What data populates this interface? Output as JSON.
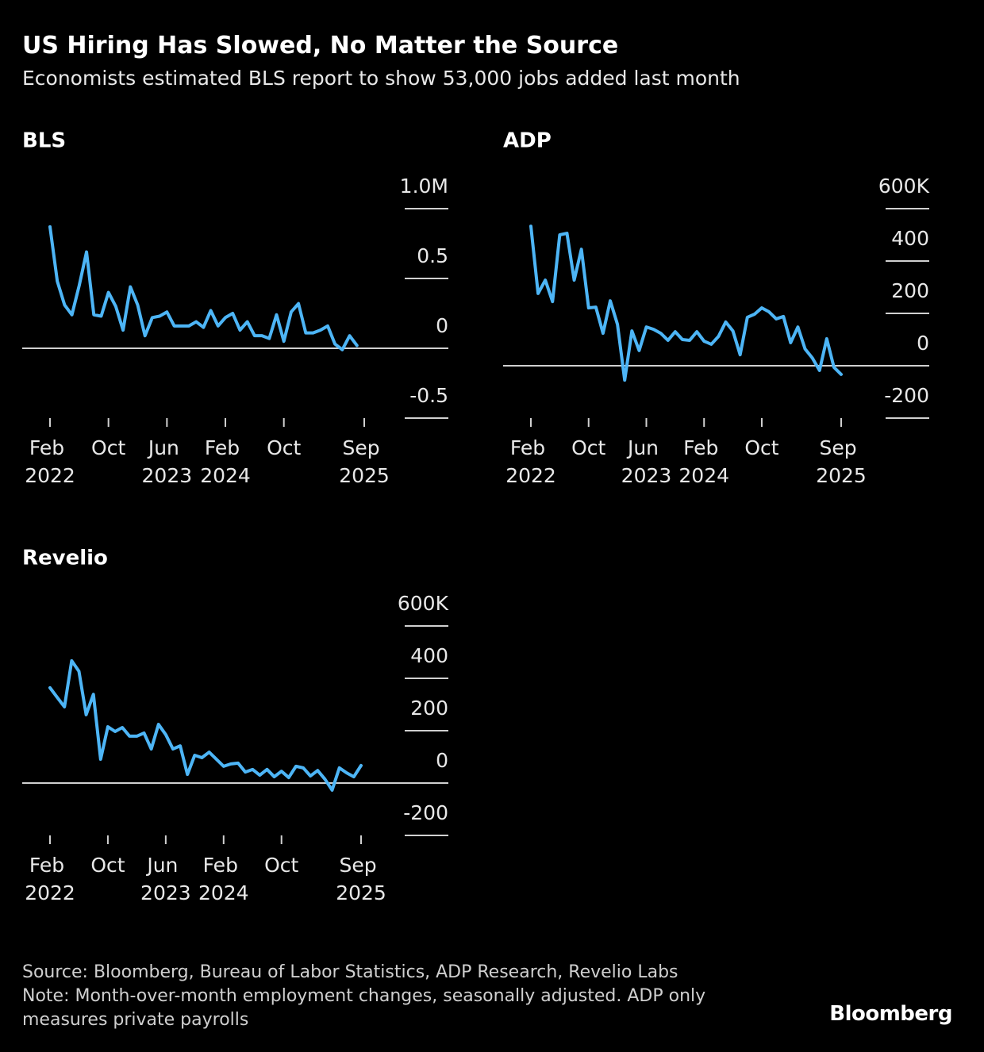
{
  "title": "US Hiring Has Slowed, No Matter the Source",
  "subtitle": "Economists estimated BLS report to show 53,000 jobs added last month",
  "chart_data": [
    {
      "type": "line",
      "title": "BLS",
      "color": "#4db5f6",
      "x": [
        "2022-02",
        "2022-03",
        "2022-04",
        "2022-05",
        "2022-06",
        "2022-07",
        "2022-08",
        "2022-09",
        "2022-10",
        "2022-11",
        "2022-12",
        "2023-01",
        "2023-02",
        "2023-03",
        "2023-04",
        "2023-05",
        "2023-06",
        "2023-07",
        "2023-08",
        "2023-09",
        "2023-10",
        "2023-11",
        "2023-12",
        "2024-01",
        "2024-02",
        "2024-03",
        "2024-04",
        "2024-05",
        "2024-06",
        "2024-07",
        "2024-08",
        "2024-09",
        "2024-10",
        "2024-11",
        "2024-12",
        "2025-01",
        "2025-02",
        "2025-03",
        "2025-04",
        "2025-05",
        "2025-06",
        "2025-07",
        "2025-08",
        "2025-09"
      ],
      "values": [
        0.87,
        0.48,
        0.31,
        0.24,
        0.45,
        0.69,
        0.24,
        0.23,
        0.4,
        0.3,
        0.13,
        0.44,
        0.31,
        0.09,
        0.22,
        0.23,
        0.26,
        0.16,
        0.16,
        0.16,
        0.19,
        0.15,
        0.27,
        0.16,
        0.22,
        0.25,
        0.13,
        0.19,
        0.09,
        0.09,
        0.07,
        0.24,
        0.05,
        0.26,
        0.32,
        0.11,
        0.11,
        0.13,
        0.16,
        0.03,
        -0.01,
        0.09,
        0.02,
        null
      ],
      "ylim": [
        -0.5,
        1.0
      ],
      "yticks": [
        {
          "value": 1.0,
          "label": "1.0M"
        },
        0.5,
        0,
        -0.5
      ],
      "xticks": [
        {
          "value": "2022-02",
          "label": "Feb 2022"
        },
        {
          "value": "2022-10",
          "label": "Oct"
        },
        {
          "value": "2023-06",
          "label": "Jun 2023"
        },
        {
          "value": "2024-02",
          "label": "Feb 2024"
        },
        {
          "value": "2024-10",
          "label": "Oct"
        },
        {
          "value": "2025-09",
          "label": "Sep 2025"
        }
      ]
    },
    {
      "type": "line",
      "title": "ADP",
      "color": "#4db5f6",
      "x": [
        "2022-02",
        "2022-03",
        "2022-04",
        "2022-05",
        "2022-06",
        "2022-07",
        "2022-08",
        "2022-09",
        "2022-10",
        "2022-11",
        "2022-12",
        "2023-01",
        "2023-02",
        "2023-03",
        "2023-04",
        "2023-05",
        "2023-06",
        "2023-07",
        "2023-08",
        "2023-09",
        "2023-10",
        "2023-11",
        "2023-12",
        "2024-01",
        "2024-02",
        "2024-03",
        "2024-04",
        "2024-05",
        "2024-06",
        "2024-07",
        "2024-08",
        "2024-09",
        "2024-10",
        "2024-11",
        "2024-12",
        "2025-01",
        "2025-02",
        "2025-03",
        "2025-04",
        "2025-05",
        "2025-06",
        "2025-07",
        "2025-08",
        "2025-09"
      ],
      "values": [
        533,
        276,
        327,
        245,
        500,
        506,
        327,
        445,
        221,
        224,
        124,
        248,
        158,
        -55,
        133,
        58,
        148,
        139,
        124,
        97,
        130,
        100,
        97,
        130,
        94,
        82,
        112,
        167,
        133,
        42,
        185,
        197,
        221,
        206,
        179,
        188,
        88,
        148,
        64,
        30,
        -18,
        103,
        -6,
        -33
      ],
      "ylim": [
        -200,
        600
      ],
      "yticks": [
        {
          "value": 600,
          "label": "600K"
        },
        400,
        200,
        0,
        -200
      ],
      "xticks": [
        {
          "value": "2022-02",
          "label": "Feb 2022"
        },
        {
          "value": "2022-10",
          "label": "Oct"
        },
        {
          "value": "2023-06",
          "label": "Jun 2023"
        },
        {
          "value": "2024-02",
          "label": "Feb 2024"
        },
        {
          "value": "2024-10",
          "label": "Oct"
        },
        {
          "value": "2025-09",
          "label": "Sep 2025"
        }
      ]
    },
    {
      "type": "line",
      "title": "Revelio",
      "color": "#4db5f6",
      "x": [
        "2022-02",
        "2022-03",
        "2022-04",
        "2022-05",
        "2022-06",
        "2022-07",
        "2022-08",
        "2022-09",
        "2022-10",
        "2022-11",
        "2022-12",
        "2023-01",
        "2023-02",
        "2023-03",
        "2023-04",
        "2023-05",
        "2023-06",
        "2023-07",
        "2023-08",
        "2023-09",
        "2023-10",
        "2023-11",
        "2023-12",
        "2024-01",
        "2024-02",
        "2024-03",
        "2024-04",
        "2024-05",
        "2024-06",
        "2024-07",
        "2024-08",
        "2024-09",
        "2024-10",
        "2024-11",
        "2024-12",
        "2025-01",
        "2025-02",
        "2025-03",
        "2025-04",
        "2025-05",
        "2025-06",
        "2025-07",
        "2025-08",
        "2025-09"
      ],
      "values": [
        364,
        327,
        291,
        467,
        427,
        261,
        339,
        91,
        215,
        197,
        212,
        179,
        179,
        191,
        130,
        224,
        185,
        130,
        142,
        33,
        106,
        97,
        118,
        91,
        64,
        73,
        76,
        42,
        52,
        30,
        52,
        24,
        45,
        21,
        64,
        58,
        27,
        48,
        15,
        -27,
        58,
        39,
        24,
        67
      ],
      "ylim": [
        -200,
        600
      ],
      "yticks": [
        {
          "value": 600,
          "label": "600K"
        },
        400,
        200,
        0,
        -200
      ],
      "xticks": [
        {
          "value": "2022-02",
          "label": "Feb 2022"
        },
        {
          "value": "2022-10",
          "label": "Oct"
        },
        {
          "value": "2023-06",
          "label": "Jun 2023"
        },
        {
          "value": "2024-02",
          "label": "Feb 2024"
        },
        {
          "value": "2024-10",
          "label": "Oct"
        },
        {
          "value": "2025-09",
          "label": "Sep 2025"
        }
      ]
    }
  ],
  "source": "Source: Bloomberg, Bureau of Labor Statistics, ADP Research, Revelio Labs",
  "note": "Note: Month-over-month employment changes, seasonally adjusted. ADP only measures private payrolls",
  "logo": "Bloomberg"
}
